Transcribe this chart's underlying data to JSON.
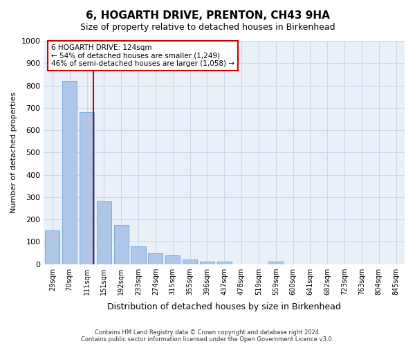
{
  "title": "6, HOGARTH DRIVE, PRENTON, CH43 9HA",
  "subtitle": "Size of property relative to detached houses in Birkenhead",
  "xlabel": "Distribution of detached houses by size in Birkenhead",
  "ylabel": "Number of detached properties",
  "bins": [
    "29sqm",
    "70sqm",
    "111sqm",
    "151sqm",
    "192sqm",
    "233sqm",
    "274sqm",
    "315sqm",
    "355sqm",
    "396sqm",
    "437sqm",
    "478sqm",
    "519sqm",
    "559sqm",
    "600sqm",
    "641sqm",
    "682sqm",
    "723sqm",
    "763sqm",
    "804sqm",
    "845sqm"
  ],
  "values": [
    150,
    820,
    680,
    280,
    175,
    78,
    50,
    40,
    20,
    10,
    10,
    0,
    0,
    10,
    0,
    0,
    0,
    0,
    0,
    0,
    0
  ],
  "bar_color": "#aec6e8",
  "bar_edge_color": "#5b9bd5",
  "vline_x": 2.4,
  "annotation_title": "6 HOGARTH DRIVE: 124sqm",
  "annotation_line1": "← 54% of detached houses are smaller (1,249)",
  "annotation_line2": "46% of semi-detached houses are larger (1,058) →",
  "annotation_box_color": "#ffffff",
  "annotation_box_edge": "#cc0000",
  "vline_color": "#cc0000",
  "ylim": [
    0,
    1000
  ],
  "grid_color": "#c8d8e8",
  "background_color": "#eaf0f8",
  "footer1": "Contains HM Land Registry data © Crown copyright and database right 2024.",
  "footer2": "Contains public sector information licensed under the Open Government Licence v3.0."
}
